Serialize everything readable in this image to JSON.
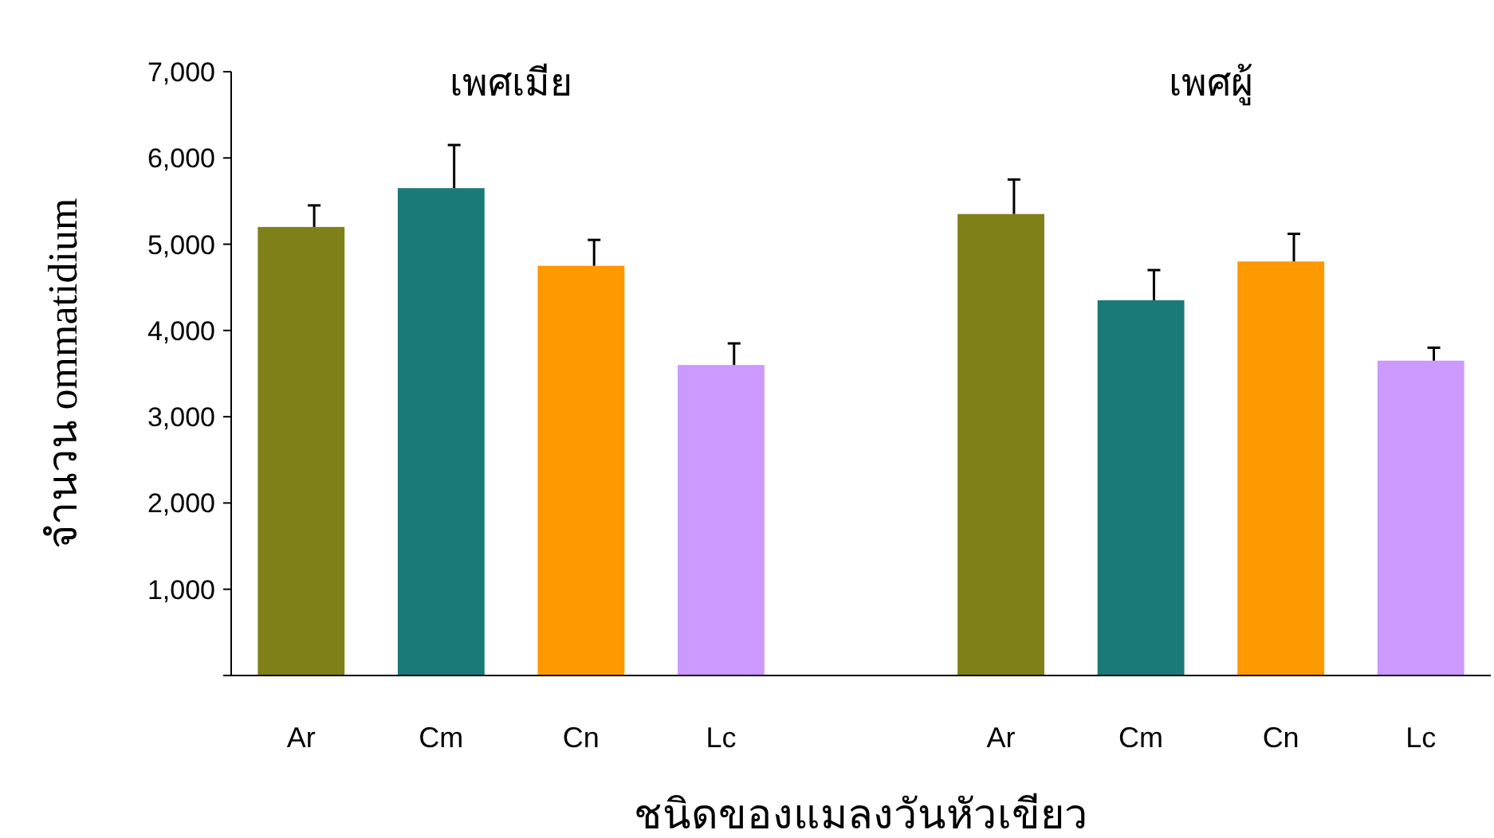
{
  "chart_data": {
    "type": "bar",
    "xlabel": "ชนิดของแมลงวันหัวเขียว",
    "ylabel": "จำนวน ommatidium",
    "annotations": [
      "เพศเมีย",
      "เพศผู้"
    ],
    "categories": [
      "Ar",
      "Cm",
      "Cn",
      "Lc",
      null,
      "Ar",
      "Cm",
      "Cn",
      "Lc"
    ],
    "values": [
      5200,
      5650,
      4750,
      3600,
      null,
      5350,
      4350,
      4800,
      3650
    ],
    "colors": [
      "#808019",
      "#1a7a78",
      "#ff9900",
      "#cc99ff",
      null,
      "#808019",
      "#1a7a78",
      "#ff9900",
      "#cc99ff"
    ],
    "errors": [
      [
        5200,
        5450
      ],
      [
        5650,
        6150
      ],
      [
        4750,
        5050
      ],
      [
        3600,
        3850
      ],
      null,
      [
        5350,
        5750
      ],
      [
        4350,
        4700
      ],
      [
        4800,
        5120
      ],
      [
        3650,
        3800
      ]
    ],
    "ylim": [
      0,
      7000
    ],
    "yticks": [
      {
        "value": 0,
        "label": null
      },
      {
        "value": 1000,
        "label": "1,000"
      },
      {
        "value": 2000,
        "label": "2,000"
      },
      {
        "value": 3000,
        "label": "3,000"
      },
      {
        "value": 4000,
        "label": "4,000"
      },
      {
        "value": 5000,
        "label": "5,000"
      },
      {
        "value": 6000,
        "label": "6,000"
      },
      {
        "value": 7000,
        "label": "7,000"
      }
    ]
  }
}
